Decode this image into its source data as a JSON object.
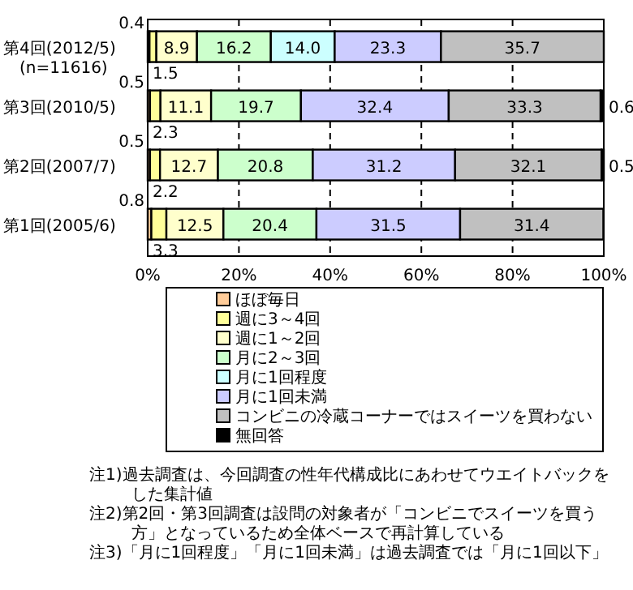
{
  "chart_data": {
    "type": "bar",
    "orientation": "horizontal",
    "stacked": true,
    "grid": "x",
    "legend": "bottom",
    "categories": [
      "第4回(2012/5)",
      "第3回(2010/5)",
      "第2回(2007/7)",
      "第1回(2005/6)"
    ],
    "series": [
      {
        "name": "ほぼ毎日",
        "color": "#ffcc99",
        "values": [
          0.4,
          0.5,
          0.5,
          0.8
        ],
        "value_labels": [
          "0.4",
          "0.5",
          "0.5",
          "0.8"
        ]
      },
      {
        "name": "週に3～4回",
        "color": "#ffff99",
        "values": [
          1.5,
          2.3,
          2.2,
          3.3
        ],
        "value_labels": [
          "1.5",
          "2.3",
          "2.2",
          "3.3"
        ]
      },
      {
        "name": "週に1～2回",
        "color": "#ffffcc",
        "values": [
          8.9,
          11.1,
          12.7,
          12.5
        ],
        "value_labels": [
          "8.9",
          "11.1",
          "12.7",
          "12.5"
        ]
      },
      {
        "name": "月に2～3回",
        "color": "#ccffcc",
        "values": [
          16.2,
          19.7,
          20.8,
          20.4
        ],
        "value_labels": [
          "16.2",
          "19.7",
          "20.8",
          "20.4"
        ]
      },
      {
        "name": "月に1回程度",
        "color": "#ccffff",
        "values": [
          14.0,
          null,
          null,
          null
        ],
        "value_labels": [
          "14.0",
          null,
          null,
          null
        ]
      },
      {
        "name": "月に1回未満",
        "color": "#ccccff",
        "values": [
          23.3,
          32.4,
          31.2,
          31.5
        ],
        "value_labels": [
          "23.3",
          "32.4",
          "31.2",
          "31.5"
        ]
      },
      {
        "name": "コンビニの冷蔵コーナーではスイーツを買わない",
        "color": "#c0c0c0",
        "values": [
          35.7,
          33.3,
          32.1,
          31.4
        ],
        "value_labels": [
          "35.7",
          "33.3",
          "32.1",
          "31.4"
        ]
      },
      {
        "name": "無回答",
        "color": "#000000",
        "values": [
          null,
          0.6,
          0.5,
          null
        ],
        "value_labels": [
          null,
          "0.6",
          "0.5",
          null
        ]
      }
    ],
    "xlim": [
      0,
      100
    ],
    "xticks": [
      {
        "value": 0,
        "label": "0%"
      },
      {
        "value": 20,
        "label": "20%"
      },
      {
        "value": 40,
        "label": "40%"
      },
      {
        "value": 60,
        "label": "60%"
      },
      {
        "value": 80,
        "label": "80%"
      },
      {
        "value": 100,
        "label": "100%"
      }
    ],
    "annotations": [
      "(n=11616)",
      "注1)過去調査は、今回調査の性年代構成比にあわせてウエイトバックをした集計値",
      "注2)第2回・第3回調査は設問の対象者が「コンビニでスイーツを買う方」となっているため全体ベースで再計算している",
      "注3)「月に1回程度」「月に1回未満」は過去調査では「月に1回以下」"
    ]
  }
}
